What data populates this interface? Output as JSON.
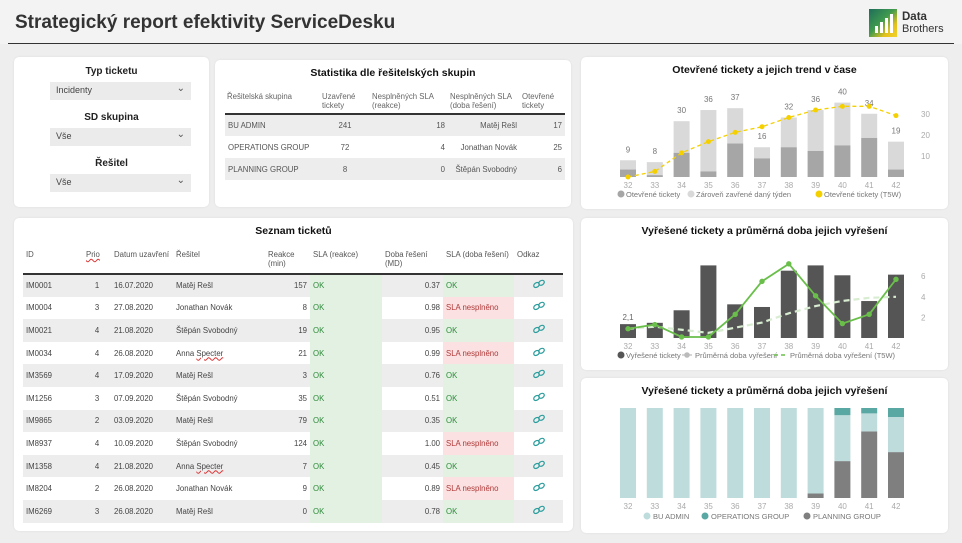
{
  "header": {
    "title": "Strategický report efektivity ServiceDesku",
    "logo": {
      "line1": "Data",
      "line2": "Brothers",
      "icon": "bar-chart-logo-icon"
    }
  },
  "filters": [
    {
      "label": "Typ ticketu",
      "value": "Incidenty"
    },
    {
      "label": "SD skupina",
      "value": "Vše"
    },
    {
      "label": "Řešitel",
      "value": "Vše"
    }
  ],
  "stats": {
    "title": "Statistika dle řešitelských skupin",
    "headers": [
      "Řešitelská skupina",
      "Uzavřené tickety",
      "Nesplněných SLA (reakce)",
      "Nesplněných SLA (doba řešení)",
      "Otevřené tickety"
    ],
    "rows": [
      [
        "BU ADMIN",
        "241",
        "18",
        "Matěj Rešl",
        "17"
      ],
      [
        "OPERATIONS GROUP",
        "72",
        "4",
        "Jonathan Novák",
        "25"
      ],
      [
        "PLANNING GROUP",
        "8",
        "0",
        "Štěpán Svobodný",
        "6"
      ]
    ]
  },
  "tickets": {
    "title": "Seznam ticketů",
    "headers": [
      "ID",
      "Prio",
      "Datum uzavření",
      "Řešitel",
      "Reakce (min)",
      "SLA (reakce)",
      "Doba řešení (MD)",
      "SLA (doba řešení)",
      "Odkaz"
    ],
    "rows": [
      [
        "IM0001",
        "1",
        "16.07.2020",
        "Matěj Rešl",
        "157",
        "OK",
        "0.37",
        "OK"
      ],
      [
        "IM0004",
        "3",
        "27.08.2020",
        "Jonathan Novák",
        "8",
        "OK",
        "0.98",
        "SLA nesplněno"
      ],
      [
        "IM0021",
        "4",
        "21.08.2020",
        "Štěpán Svobodný",
        "19",
        "OK",
        "0.95",
        "OK"
      ],
      [
        "IM0034",
        "4",
        "26.08.2020",
        "Anna Specter",
        "21",
        "OK",
        "0.99",
        "SLA nesplněno"
      ],
      [
        "IM3569",
        "4",
        "17.09.2020",
        "Matěj Rešl",
        "3",
        "OK",
        "0.76",
        "OK"
      ],
      [
        "IM1256",
        "3",
        "07.09.2020",
        "Štěpán Svobodný",
        "35",
        "OK",
        "0.51",
        "OK"
      ],
      [
        "IM9865",
        "2",
        "03.09.2020",
        "Matěj Rešl",
        "79",
        "OK",
        "0.35",
        "OK"
      ],
      [
        "IM8937",
        "4",
        "10.09.2020",
        "Štěpán Svobodný",
        "124",
        "OK",
        "1.00",
        "SLA nesplněno"
      ],
      [
        "IM1358",
        "4",
        "21.08.2020",
        "Anna Specter",
        "7",
        "OK",
        "0.45",
        "OK"
      ],
      [
        "IM8204",
        "2",
        "26.08.2020",
        "Jonathan Novák",
        "9",
        "OK",
        "0.89",
        "SLA nesplněno"
      ],
      [
        "IM6269",
        "3",
        "26.08.2020",
        "Matěj Rešl",
        "0",
        "OK",
        "0.78",
        "OK"
      ]
    ],
    "link_icon": "link-chain-icon"
  },
  "colors": {
    "ok_bg": "#e3f1e3",
    "ok_text": "#2e8b3a",
    "bad_bg": "#fbe1e1",
    "bad_text": "#b03a3a",
    "open_dark": "#a6a6a6",
    "open_light": "#d9d9d9",
    "trend_yellow": "#f5d000",
    "solved_bar": "#555555",
    "avg_green": "#6abf4b",
    "avg_t5w": "#d7ecd0",
    "bu_admin": "#bfdcdc",
    "ops": "#5aa8a3",
    "planning": "#7f7f7f"
  },
  "chart_data": [
    {
      "type": "bar",
      "title": "Otevřené tickety a jejich trend v čase",
      "categories": [
        "32",
        "33",
        "34",
        "35",
        "36",
        "37",
        "38",
        "39",
        "40",
        "41",
        "42"
      ],
      "series": [
        {
          "name": "Otevřené tickety",
          "values": [
            4,
            1,
            13,
            3,
            18,
            10,
            16,
            14,
            17,
            21,
            4
          ]
        },
        {
          "name": "Zároveň zavřené daný týden",
          "values": [
            5,
            7,
            17,
            33,
            19,
            6,
            16,
            22,
            23,
            13,
            15
          ]
        },
        {
          "name": "Otevřené tickety (T5W)",
          "type": "line",
          "values": [
            0,
            3,
            13,
            19,
            24,
            27,
            32,
            36,
            38,
            38,
            33
          ]
        }
      ],
      "totals_labels": [
        "9",
        "8",
        "30",
        "36",
        "37",
        "16",
        "32",
        "36",
        "40",
        "34",
        "19"
      ],
      "right_axis_ticks": [
        "10",
        "20",
        "30"
      ],
      "ylim": [
        0,
        40
      ],
      "legend": "bottom"
    },
    {
      "type": "bar",
      "title": "Vyřešené tickety a průměrná doba jejich vyřešení",
      "categories": [
        "32",
        "33",
        "34",
        "35",
        "36",
        "37",
        "38",
        "39",
        "40",
        "41",
        "42"
      ],
      "series": [
        {
          "name": "Vyřešené tickety",
          "values": [
            2.1,
            2.3,
            4.2,
            11.0,
            5.1,
            4.7,
            10.2,
            11.0,
            9.5,
            5.6,
            9.6
          ]
        },
        {
          "name": "Průměrná doba vyřešení",
          "type": "line",
          "values": [
            0.9,
            1.3,
            0.1,
            0.1,
            2.3,
            5.5,
            7.2,
            4.1,
            1.4,
            2.3,
            5.7
          ]
        },
        {
          "name": "Průměrná doba vyřešení (T5W)",
          "type": "line-dashed",
          "values": [
            0.9,
            1.1,
            0.8,
            0.5,
            1.0,
            1.5,
            2.4,
            3.1,
            3.6,
            3.9,
            4.0
          ]
        }
      ],
      "data_labels": [
        {
          "category": "32",
          "text": "2,1"
        }
      ],
      "right_axis_ticks": [
        "2",
        "4",
        "6"
      ],
      "ylim_line": [
        0,
        8
      ],
      "legend": "bottom"
    },
    {
      "type": "bar",
      "stacked": "100%",
      "title": "Vyřešené tickety a průměrná doba jejich vyřešení",
      "categories": [
        "32",
        "33",
        "34",
        "35",
        "36",
        "37",
        "38",
        "39",
        "40",
        "41",
        "42"
      ],
      "series": [
        {
          "name": "PLANNING GROUP",
          "values": [
            0,
            0,
            0,
            0,
            0,
            0,
            0,
            5,
            41,
            74,
            51
          ]
        },
        {
          "name": "BU ADMIN",
          "values": [
            100,
            100,
            100,
            100,
            100,
            100,
            100,
            95,
            51,
            20,
            39
          ]
        },
        {
          "name": "OPERATIONS GROUP",
          "values": [
            0,
            0,
            0,
            0,
            0,
            0,
            0,
            0,
            8,
            6,
            10
          ]
        }
      ],
      "legend_order": [
        "BU ADMIN",
        "OPERATIONS GROUP",
        "PLANNING GROUP"
      ],
      "ylim": [
        0,
        100
      ],
      "legend": "bottom"
    }
  ]
}
